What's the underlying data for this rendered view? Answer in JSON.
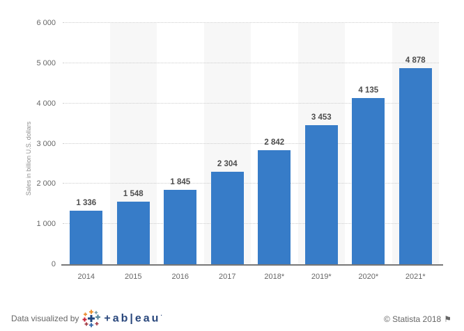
{
  "chart_data": {
    "type": "bar",
    "title": "",
    "categories": [
      "2014",
      "2015",
      "2016",
      "2017",
      "2018*",
      "2019*",
      "2020*",
      "2021*"
    ],
    "values": [
      1336,
      1548,
      1845,
      2304,
      2842,
      3453,
      4135,
      4878
    ],
    "value_labels": [
      "1 336",
      "1 548",
      "1 845",
      "2 304",
      "2 842",
      "3 453",
      "4 135",
      "4 878"
    ],
    "xlabel": "",
    "ylabel": "Sales in billion U.S. dollars",
    "ylim": [
      0,
      6000
    ],
    "ytick_values": [
      0,
      1000,
      2000,
      3000,
      4000,
      5000,
      6000
    ],
    "ytick_labels": [
      "0",
      "1 000",
      "2 000",
      "3 000",
      "4 000",
      "5 000",
      "6 000"
    ],
    "grid": "horizontal-dotted",
    "legend_position": "none",
    "bar_color": "#377cc8",
    "band_color": "#f7f7f7",
    "grid_color": "#cccccc",
    "axis_color": "#777777"
  },
  "footer": {
    "left_text": "Data visualized by",
    "tableau_logo_icon": "tableau-logo-icon",
    "wordmark": "+ab|eau",
    "trademark_dot": "·",
    "right_text": "© Statista 2018",
    "flag_icon": "⚑"
  }
}
